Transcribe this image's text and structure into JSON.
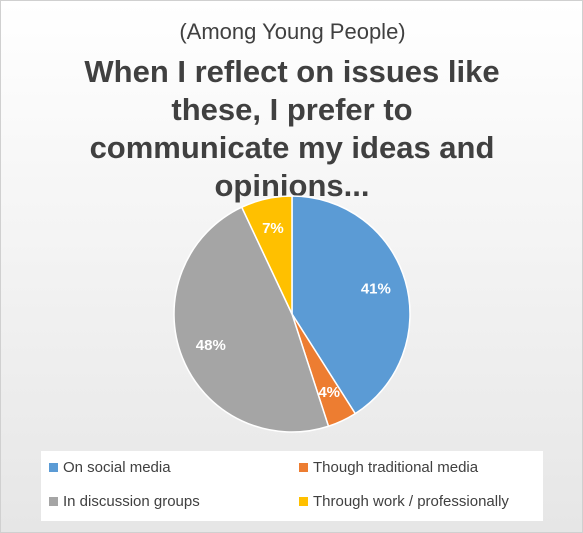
{
  "chart_data": {
    "type": "pie",
    "subtitle": "(Among Young People)",
    "title": "When I reflect on issues like these, I prefer to communicate my ideas and opinions...",
    "categories": [
      "On social media",
      "Though traditional media",
      "In discussion groups",
      "Through work / professionally"
    ],
    "values": [
      41,
      4,
      48,
      7
    ],
    "value_labels": [
      "41%",
      "4%",
      "48%",
      "7%"
    ],
    "colors": [
      "#5b9bd5",
      "#ed7d31",
      "#a5a5a5",
      "#ffc000"
    ]
  }
}
